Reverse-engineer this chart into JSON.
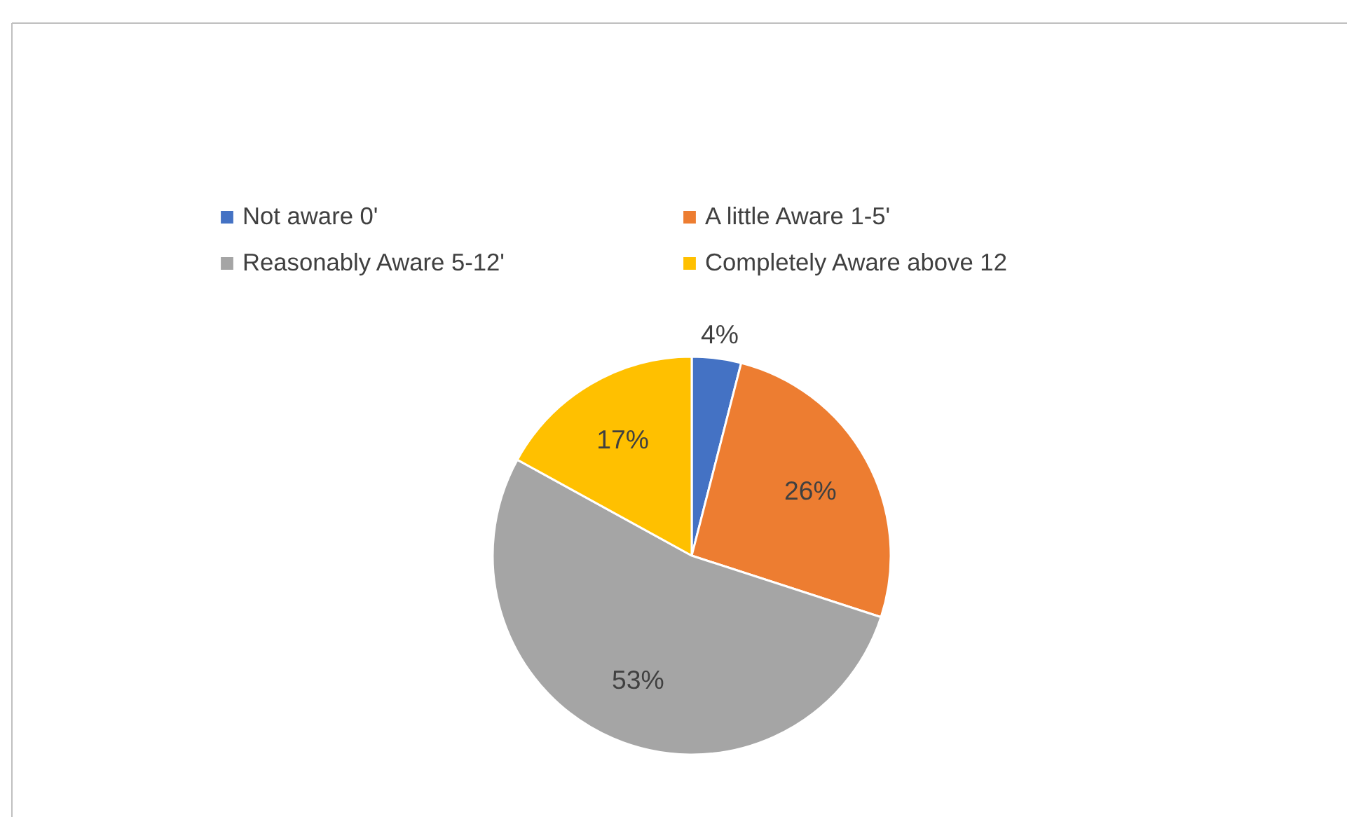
{
  "chart_data": {
    "type": "pie",
    "categories": [
      "Not aware 0'",
      "A little Aware 1-5'",
      "Reasonably Aware 5-12'",
      "Completely Aware above 12"
    ],
    "values": [
      4,
      26,
      53,
      17
    ],
    "colors": [
      "#4472c4",
      "#ed7d31",
      "#a5a5a5",
      "#ffc000"
    ],
    "value_labels": [
      "4%",
      "26%",
      "53%",
      "17%"
    ],
    "legend": "top"
  }
}
